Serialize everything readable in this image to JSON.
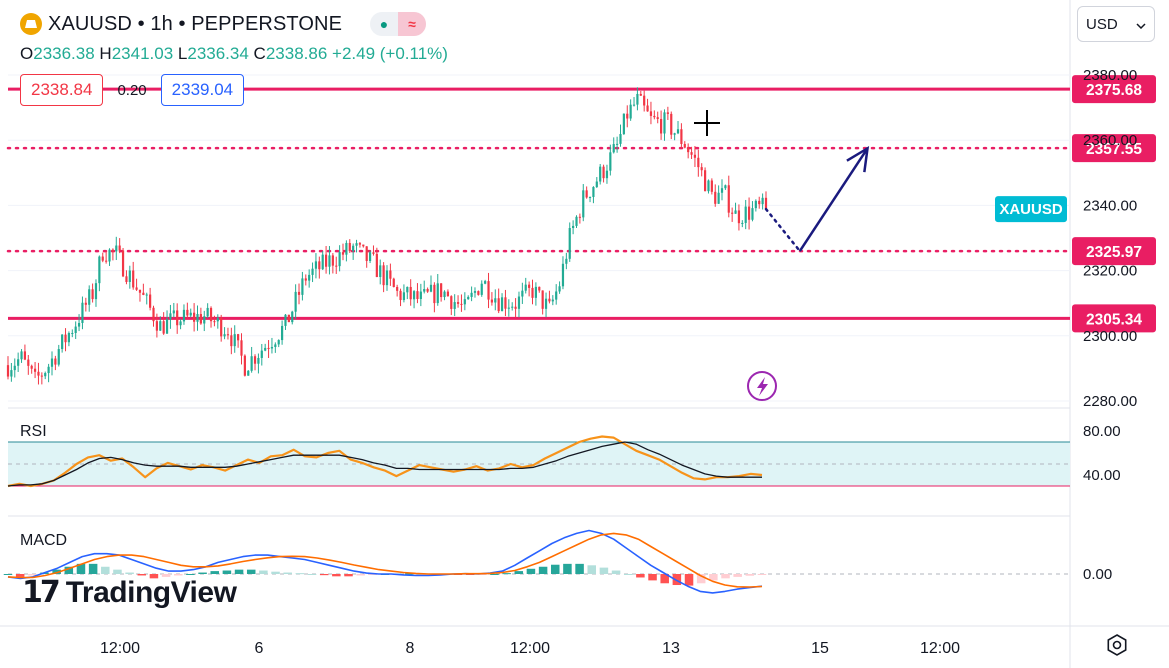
{
  "header": {
    "symbol_title": "XAUUSD • 1h • PEPPERSTONE",
    "ohlc": {
      "o_label": "O",
      "o": "2336.38",
      "h_label": "H",
      "h": "2341.03",
      "l_label": "L",
      "l": "2336.34",
      "c_label": "C",
      "c": "2338.86",
      "change": "+2.49 (+0.11%)"
    },
    "sell_price": "2338.84",
    "spread": "0.20",
    "buy_price": "2339.04",
    "currency": "USD"
  },
  "colors": {
    "up": "#22ab94",
    "down": "#f23645",
    "level": "#e91e63",
    "arrow": "#1a1a7e",
    "rsi": "#f7931a",
    "signal_line": "#131722",
    "macd_line": "#2962ff",
    "ticker_tag": "#00bcd4"
  },
  "chart_data": [
    {
      "type": "candlestick",
      "title": "XAUUSD • 1h • PEPPERSTONE",
      "ylim": [
        2276,
        2386
      ],
      "y_ticks": [
        "2380.00",
        "2360.00",
        "2340.00",
        "2320.00",
        "2300.00",
        "2280.00"
      ],
      "x_ticks": [
        "12:00",
        "6",
        "8",
        "12:00",
        "13",
        "15",
        "12:00"
      ],
      "ticker_tag": "XAUUSD",
      "anchors": [
        {
          "i": 0,
          "v": 2291
        },
        {
          "i": 4,
          "v": 2293
        },
        {
          "i": 8,
          "v": 2286
        },
        {
          "i": 12,
          "v": 2291
        },
        {
          "i": 20,
          "v": 2304
        },
        {
          "i": 25,
          "v": 2313
        },
        {
          "i": 28,
          "v": 2326
        },
        {
          "i": 32,
          "v": 2325
        },
        {
          "i": 38,
          "v": 2315
        },
        {
          "i": 45,
          "v": 2303
        },
        {
          "i": 50,
          "v": 2305
        },
        {
          "i": 58,
          "v": 2306
        },
        {
          "i": 65,
          "v": 2302
        },
        {
          "i": 70,
          "v": 2291
        },
        {
          "i": 75,
          "v": 2296
        },
        {
          "i": 82,
          "v": 2303
        },
        {
          "i": 88,
          "v": 2318
        },
        {
          "i": 95,
          "v": 2323
        },
        {
          "i": 102,
          "v": 2327
        },
        {
          "i": 108,
          "v": 2322
        },
        {
          "i": 115,
          "v": 2313
        },
        {
          "i": 122,
          "v": 2311
        },
        {
          "i": 128,
          "v": 2314
        },
        {
          "i": 135,
          "v": 2308
        },
        {
          "i": 140,
          "v": 2317
        },
        {
          "i": 145,
          "v": 2311
        },
        {
          "i": 150,
          "v": 2310
        },
        {
          "i": 155,
          "v": 2314
        },
        {
          "i": 160,
          "v": 2308
        },
        {
          "i": 163,
          "v": 2316
        },
        {
          "i": 166,
          "v": 2330
        },
        {
          "i": 170,
          "v": 2342
        },
        {
          "i": 176,
          "v": 2351
        },
        {
          "i": 180,
          "v": 2358
        },
        {
          "i": 183,
          "v": 2368
        },
        {
          "i": 186,
          "v": 2372
        },
        {
          "i": 190,
          "v": 2366
        },
        {
          "i": 195,
          "v": 2365
        },
        {
          "i": 200,
          "v": 2359
        },
        {
          "i": 204,
          "v": 2352
        },
        {
          "i": 208,
          "v": 2343
        },
        {
          "i": 212,
          "v": 2343
        },
        {
          "i": 215,
          "v": 2337
        },
        {
          "i": 219,
          "v": 2338
        },
        {
          "i": 222,
          "v": 2339
        },
        {
          "i": 224,
          "v": 2338.86
        }
      ],
      "last_price": 2338.86,
      "levels": [
        {
          "value": 2375.68,
          "label": "2375.68",
          "style": "solid"
        },
        {
          "value": 2357.55,
          "label": "2357.55",
          "style": "dotted"
        },
        {
          "value": 2325.97,
          "label": "2325.97",
          "style": "dotted"
        },
        {
          "value": 2305.34,
          "label": "2305.34",
          "style": "solid"
        }
      ],
      "projection": [
        {
          "i": 224,
          "v": 2338.86
        },
        {
          "i": 234,
          "v": 2326
        },
        {
          "i": 254,
          "v": 2357.5
        }
      ]
    },
    {
      "type": "line",
      "title": "RSI",
      "band": [
        30,
        70
      ],
      "y_ticks": [
        "80.00",
        "40.00"
      ],
      "series": [
        {
          "values": [
            30,
            32,
            30,
            32,
            35,
            42,
            50,
            56,
            58,
            53,
            55,
            47,
            38,
            46,
            51,
            48,
            45,
            49,
            47,
            44,
            49,
            54,
            51,
            57,
            58,
            63,
            57,
            56,
            60,
            62,
            54,
            51,
            47,
            44,
            39,
            44,
            49,
            47,
            45,
            43,
            45,
            48,
            44,
            46,
            50,
            47,
            49,
            55,
            60,
            65,
            70,
            73,
            75,
            74,
            68,
            62,
            58,
            54,
            48,
            42,
            37,
            36,
            38,
            38,
            39,
            41,
            40
          ]
        },
        {
          "values": [
            30,
            31,
            31,
            32,
            35,
            40,
            45,
            51,
            55,
            56,
            54,
            51,
            49,
            48,
            48,
            48,
            47,
            47,
            47,
            47,
            48,
            50,
            52,
            54,
            56,
            58,
            58,
            58,
            58,
            58,
            56,
            54,
            51,
            49,
            46,
            46,
            45,
            45,
            45,
            45,
            45,
            45,
            45,
            45,
            46,
            46,
            47,
            50,
            53,
            57,
            60,
            63,
            66,
            68,
            70,
            68,
            63,
            59,
            54,
            49,
            45,
            41,
            39,
            38,
            38,
            38,
            38
          ]
        }
      ]
    },
    {
      "type": "bar+line",
      "title": "MACD",
      "y_ticks": [
        "0.00"
      ],
      "histogram": [
        0,
        -1,
        -0.5,
        0.5,
        1.5,
        2.5,
        3.5,
        3.5,
        2.5,
        1.5,
        0.5,
        -0.5,
        -1.5,
        -1,
        -0.5,
        0,
        0.5,
        1,
        1.2,
        1.5,
        1.5,
        1.2,
        0.8,
        0.5,
        0.3,
        0,
        -0.4,
        -0.8,
        -0.8,
        -0.5,
        -0.2,
        0,
        0.1,
        0.2,
        0.2,
        0.1,
        0,
        -0.2,
        -0.2,
        -0.1,
        0,
        0.3,
        1,
        1.8,
        2.5,
        3.2,
        3.5,
        3.5,
        3,
        2.2,
        1.2,
        0,
        -1.2,
        -2.2,
        -3.2,
        -3.8,
        -4,
        -3.2,
        -2.2,
        -1.5,
        -1,
        -0.6,
        -0.3
      ],
      "series": [
        {
          "values": [
            -1,
            -1.5,
            -1,
            0.5,
            2,
            4,
            6,
            7,
            7,
            6.5,
            5,
            3.5,
            2,
            1,
            1,
            1.5,
            2.5,
            4,
            5,
            6,
            6.5,
            6.5,
            6,
            5.5,
            5,
            4,
            3,
            2,
            1,
            0.3,
            0,
            0,
            -0.3,
            -0.5,
            -0.5,
            -0.3,
            0,
            0.1,
            0,
            0.3,
            1,
            3,
            5.5,
            8,
            10.5,
            12.5,
            14,
            15,
            14,
            12,
            9,
            6,
            3,
            0.5,
            -2,
            -4.2,
            -6,
            -6.5,
            -6,
            -5.2,
            -4.7,
            -4.2
          ]
        },
        {
          "values": [
            -1,
            -1.2,
            -1.2,
            -0.5,
            0.5,
            2,
            3.5,
            5,
            6,
            6.5,
            6.5,
            6,
            5,
            4,
            3,
            2.5,
            2.5,
            2.8,
            3.5,
            4.3,
            5,
            5.6,
            6,
            6.1,
            6,
            5.5,
            4.8,
            4,
            3.1,
            2.3,
            1.5,
            1,
            0.5,
            0.2,
            0,
            0,
            0,
            0.1,
            0.1,
            0.2,
            0.5,
            1.2,
            2.5,
            4,
            6,
            8,
            10,
            12,
            13.5,
            14,
            13.5,
            12,
            9.5,
            7,
            4.5,
            2,
            -0.5,
            -2.5,
            -3.8,
            -4.4,
            -4.5,
            -4.3
          ]
        }
      ]
    }
  ],
  "panes": {
    "rsi_label": "RSI",
    "macd_label": "MACD"
  },
  "x_axis": {
    "ticks": [
      "12:00",
      "6",
      "8",
      "12:00",
      "13",
      "15",
      "12:00"
    ]
  },
  "branding": {
    "logo_text": "TradingView"
  },
  "icons": {
    "settings": "settings-gear-icon",
    "lightning": "lightning-icon",
    "crosshair": "crosshair-icon"
  }
}
